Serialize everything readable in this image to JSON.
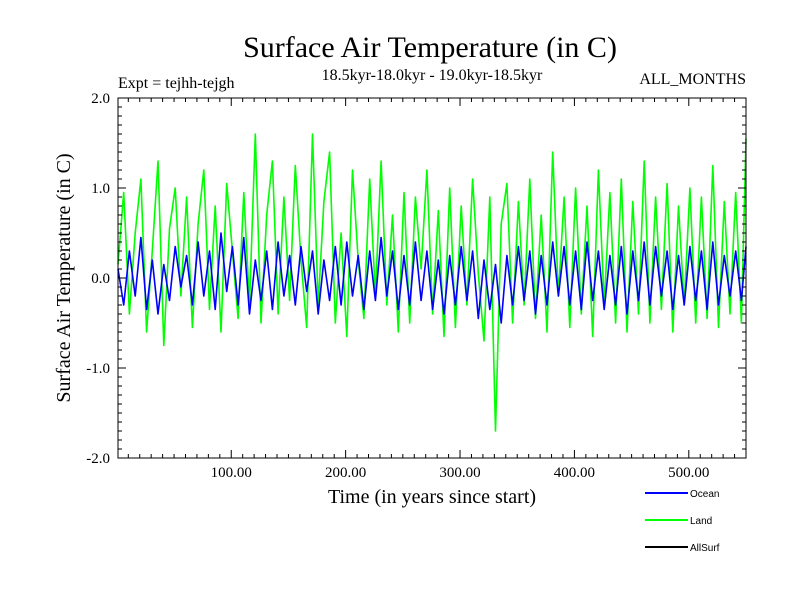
{
  "chart_data": {
    "type": "line",
    "title": "Surface Air Temperature (in C)",
    "expt_label": "Expt = tejhh-tejgh",
    "period_label": "18.5kyr-18.0kyr - 19.0kyr-18.5kyr",
    "months_label": "ALL_MONTHS",
    "xlabel": "Time (in years since start)",
    "ylabel": "Surface Air Temperature (in C)",
    "xlim": [
      1,
      550
    ],
    "ylim": [
      -2.0,
      2.0
    ],
    "x_ticks": [
      100,
      200,
      300,
      400,
      500
    ],
    "x_tick_labels": [
      "100.00",
      "200.00",
      "300.00",
      "400.00",
      "500.00"
    ],
    "y_ticks": [
      2.0,
      1.0,
      0.0,
      -1.0,
      -2.0
    ],
    "y_tick_labels": [
      "2.0",
      "1.0",
      "0.0",
      "-1.0",
      "-2.0"
    ],
    "series": [
      {
        "name": "Land",
        "color": "#00ff00",
        "x_start": 1,
        "step": 5,
        "values": [
          0.15,
          0.95,
          -0.4,
          0.5,
          1.1,
          -0.6,
          0.3,
          1.3,
          -0.75,
          0.55,
          1.0,
          -0.2,
          0.9,
          -0.55,
          0.6,
          1.2,
          -0.35,
          0.8,
          -0.6,
          1.05,
          0.3,
          -0.45,
          0.95,
          -0.3,
          1.6,
          -0.5,
          0.7,
          1.3,
          -0.4,
          0.9,
          -0.25,
          1.25,
          0.2,
          -0.55,
          1.6,
          -0.3,
          0.85,
          1.4,
          -0.5,
          0.5,
          -0.65,
          1.2,
          0.2,
          -0.45,
          1.1,
          -0.2,
          1.3,
          -0.3,
          0.7,
          -0.6,
          0.95,
          -0.5,
          0.9,
          0.1,
          1.2,
          -0.4,
          0.75,
          -0.65,
          1.0,
          -0.55,
          0.8,
          -0.3,
          1.1,
          0.05,
          -0.7,
          0.9,
          -1.7,
          0.6,
          1.05,
          -0.5,
          0.85,
          -0.3,
          1.1,
          -0.45,
          0.7,
          -0.6,
          1.4,
          -0.2,
          0.9,
          -0.55,
          1.0,
          -0.4,
          0.8,
          -0.65,
          1.2,
          -0.3,
          0.95,
          -0.5,
          1.1,
          -0.6,
          0.85,
          -0.4,
          1.3,
          -0.5,
          0.9,
          -0.35,
          1.05,
          -0.6,
          0.8,
          -0.3,
          1.0,
          -0.5,
          0.9,
          -0.45,
          1.25,
          -0.55,
          0.85,
          -0.4,
          0.95,
          -0.5,
          1.55
        ]
      },
      {
        "name": "Ocean",
        "color": "#0000ff",
        "x_start": 1,
        "step": 5,
        "values": [
          0.1,
          -0.3,
          0.3,
          -0.2,
          0.45,
          -0.35,
          0.2,
          -0.4,
          0.15,
          -0.25,
          0.35,
          -0.1,
          0.25,
          -0.3,
          0.4,
          -0.2,
          0.3,
          -0.35,
          0.5,
          -0.15,
          0.35,
          -0.3,
          0.45,
          -0.4,
          0.2,
          -0.25,
          0.3,
          -0.35,
          0.4,
          -0.2,
          0.25,
          -0.3,
          0.35,
          -0.15,
          0.3,
          -0.4,
          0.2,
          -0.25,
          0.35,
          -0.3,
          0.4,
          -0.2,
          0.25,
          -0.35,
          0.3,
          -0.25,
          0.45,
          -0.2,
          0.3,
          -0.35,
          0.25,
          -0.3,
          0.4,
          -0.25,
          0.3,
          -0.35,
          0.2,
          -0.4,
          0.25,
          -0.3,
          0.35,
          -0.25,
          0.3,
          -0.45,
          0.2,
          -0.35,
          0.15,
          -0.5,
          0.25,
          -0.3,
          0.35,
          -0.25,
          0.3,
          -0.4,
          0.25,
          -0.3,
          0.4,
          -0.2,
          0.35,
          -0.3,
          0.3,
          -0.35,
          0.4,
          -0.25,
          0.3,
          -0.35,
          0.25,
          -0.3,
          0.35,
          -0.4,
          0.3,
          -0.25,
          0.4,
          -0.3,
          0.35,
          -0.2,
          0.3,
          -0.35,
          0.25,
          -0.3,
          0.35,
          -0.25,
          0.3,
          -0.35,
          0.4,
          -0.3,
          0.25,
          -0.2,
          0.3,
          -0.25,
          0.35
        ]
      },
      {
        "name": "AllSurf",
        "color": "#000000",
        "values": []
      }
    ],
    "legend_location": "bottom-right"
  }
}
